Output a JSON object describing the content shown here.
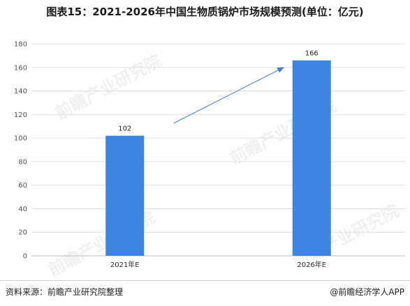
{
  "title": "图表15：2021-2026年中国生物质锅炉市场规模预测(单位：亿元)",
  "watermark": "前瞻产业研究院",
  "source": "资料来源：前瞻产业研究院整理",
  "brand": "@前瞻经济学人APP",
  "colors": {
    "bar": "#3d85e0",
    "arrow": "#4a7cc0",
    "grid": "#e0e0e0",
    "axis": "#bfbfbf"
  },
  "chart_data": {
    "type": "bar",
    "categories": [
      "2021年E",
      "2026年E"
    ],
    "values": [
      102,
      166
    ],
    "data_labels": [
      "102",
      "166"
    ],
    "ylim": [
      0,
      180
    ],
    "yticks": [
      "0",
      "20",
      "40",
      "60",
      "80",
      "100",
      "120",
      "140",
      "160",
      "180"
    ],
    "grid": true,
    "annotation": "upward arrow from 2021年E bar toward 2026年E bar"
  }
}
